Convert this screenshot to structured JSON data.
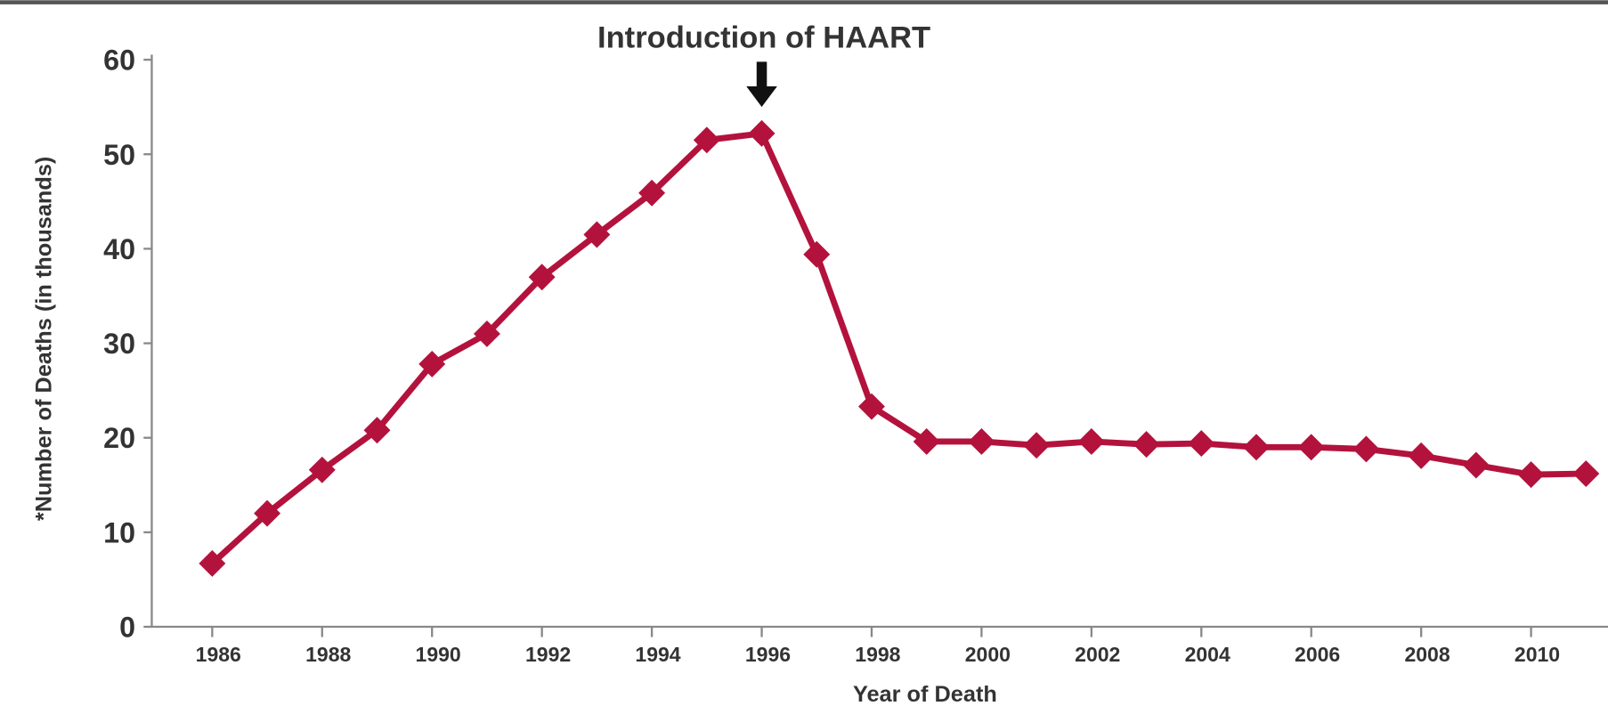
{
  "chart_data": {
    "type": "line",
    "annotation": "Introduction of HAART",
    "annotation_x": 1996,
    "x_label": "Year of Death",
    "y_label": "*Number of Deaths (in thousands)",
    "x": [
      1986,
      1987,
      1988,
      1989,
      1990,
      1991,
      1992,
      1993,
      1994,
      1995,
      1996,
      1997,
      1998,
      1999,
      2000,
      2001,
      2002,
      2003,
      2004,
      2005,
      2006,
      2007,
      2008,
      2009,
      2010,
      2011
    ],
    "series": [
      {
        "name": "Deaths",
        "color": "#b3123c",
        "values": [
          6.7,
          12.0,
          16.6,
          20.8,
          27.8,
          31.0,
          37.0,
          41.5,
          45.9,
          51.5,
          52.2,
          39.4,
          23.3,
          19.6,
          19.6,
          19.2,
          19.6,
          19.3,
          19.4,
          19.0,
          19.0,
          18.8,
          18.1,
          17.1,
          16.1,
          16.2
        ]
      }
    ],
    "xlim": [
      1984.9,
      2011.4
    ],
    "xticks": [
      1986,
      1988,
      1990,
      1992,
      1994,
      1996,
      1998,
      2000,
      2002,
      2004,
      2006,
      2008,
      2010
    ],
    "ylim": [
      0,
      60
    ],
    "yticks": [
      0,
      10,
      20,
      30,
      40,
      50,
      60
    ]
  }
}
